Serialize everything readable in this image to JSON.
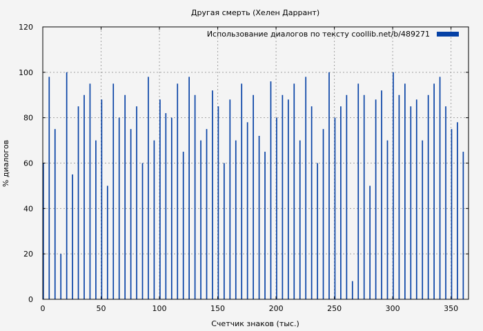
{
  "chart_data": {
    "type": "bar",
    "title": "Другая смерть (Хелен Даррант)",
    "xlabel": "Счетчик знаков (тыс.)",
    "ylabel": "% диалогов",
    "xlim": [
      0,
      365
    ],
    "ylim": [
      0,
      120
    ],
    "xticks": [
      0,
      50,
      100,
      150,
      200,
      250,
      300,
      350
    ],
    "yticks": [
      0,
      20,
      40,
      60,
      80,
      100,
      120
    ],
    "grid": true,
    "legend_position": "top-right",
    "bar_width": 1,
    "series": [
      {
        "name": "Использование диалогов по тексту  coollib.net/b/489271",
        "color": "#0641a5",
        "x": [
          0,
          5,
          10,
          15,
          20,
          25,
          30,
          35,
          40,
          45,
          50,
          55,
          60,
          65,
          70,
          75,
          80,
          85,
          90,
          95,
          100,
          105,
          110,
          115,
          120,
          125,
          130,
          135,
          140,
          145,
          150,
          155,
          160,
          165,
          170,
          175,
          180,
          185,
          190,
          195,
          200,
          205,
          210,
          215,
          220,
          225,
          230,
          235,
          240,
          245,
          250,
          255,
          260,
          265,
          270,
          275,
          280,
          285,
          290,
          295,
          300,
          305,
          310,
          315,
          320,
          325,
          330,
          335,
          340,
          345,
          350,
          355,
          360
        ],
        "values": [
          60,
          98,
          75,
          20,
          100,
          55,
          85,
          90,
          95,
          70,
          88,
          50,
          95,
          80,
          90,
          75,
          85,
          60,
          98,
          70,
          88,
          82,
          80,
          95,
          65,
          98,
          90,
          70,
          75,
          92,
          85,
          60,
          88,
          70,
          95,
          78,
          90,
          72,
          65,
          96,
          80,
          90,
          88,
          95,
          70,
          98,
          85,
          60,
          75,
          100,
          80,
          85,
          90,
          8,
          95,
          90,
          50,
          88,
          92,
          70,
          100,
          90,
          95,
          85,
          88,
          70,
          90,
          95,
          98,
          85,
          75,
          78,
          65
        ]
      }
    ]
  }
}
